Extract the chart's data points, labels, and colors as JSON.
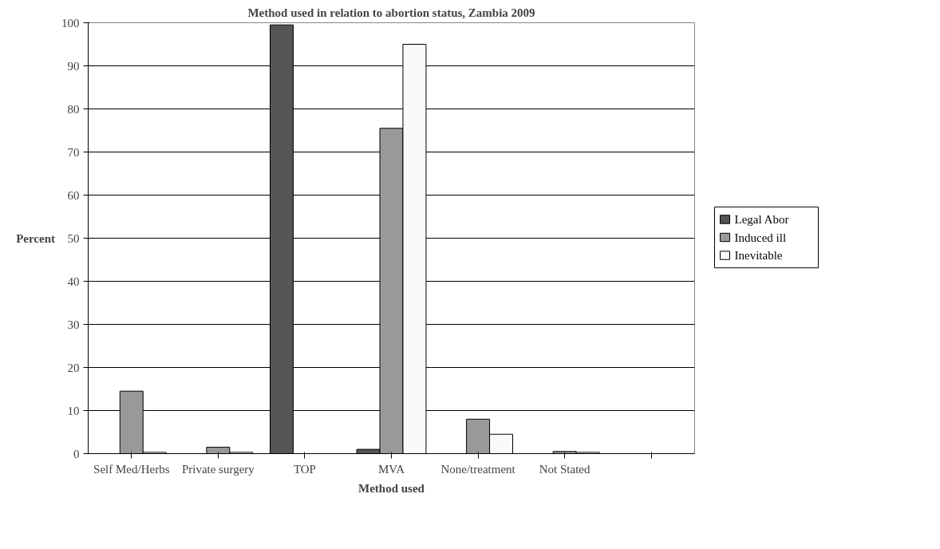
{
  "chart_data": {
    "type": "bar",
    "title": "Method used in relation to abortion status, Zambia 2009",
    "xlabel": "Method used",
    "ylabel": "Percent",
    "categories": [
      "Self Med/Herbs",
      "Private surgery",
      "TOP",
      "MVA",
      "None/treatment",
      "Not Stated",
      null
    ],
    "series": [
      {
        "name": "Legal Abor",
        "color": "#555555",
        "values": [
          null,
          null,
          99.5,
          1,
          null,
          null,
          null
        ]
      },
      {
        "name": "Induced ill",
        "color": "#999999",
        "values": [
          14.5,
          1.5,
          null,
          75.5,
          8,
          0.5,
          null
        ]
      },
      {
        "name": "Inevitable",
        "color": "#fafafa",
        "values": [
          0.3,
          0.3,
          null,
          95,
          4.5,
          0.3,
          null
        ]
      }
    ],
    "ylim": [
      0,
      100
    ],
    "yticks": [
      0,
      10,
      20,
      30,
      40,
      50,
      60,
      70,
      80,
      90,
      100
    ],
    "grid": "y",
    "legend": "right"
  }
}
